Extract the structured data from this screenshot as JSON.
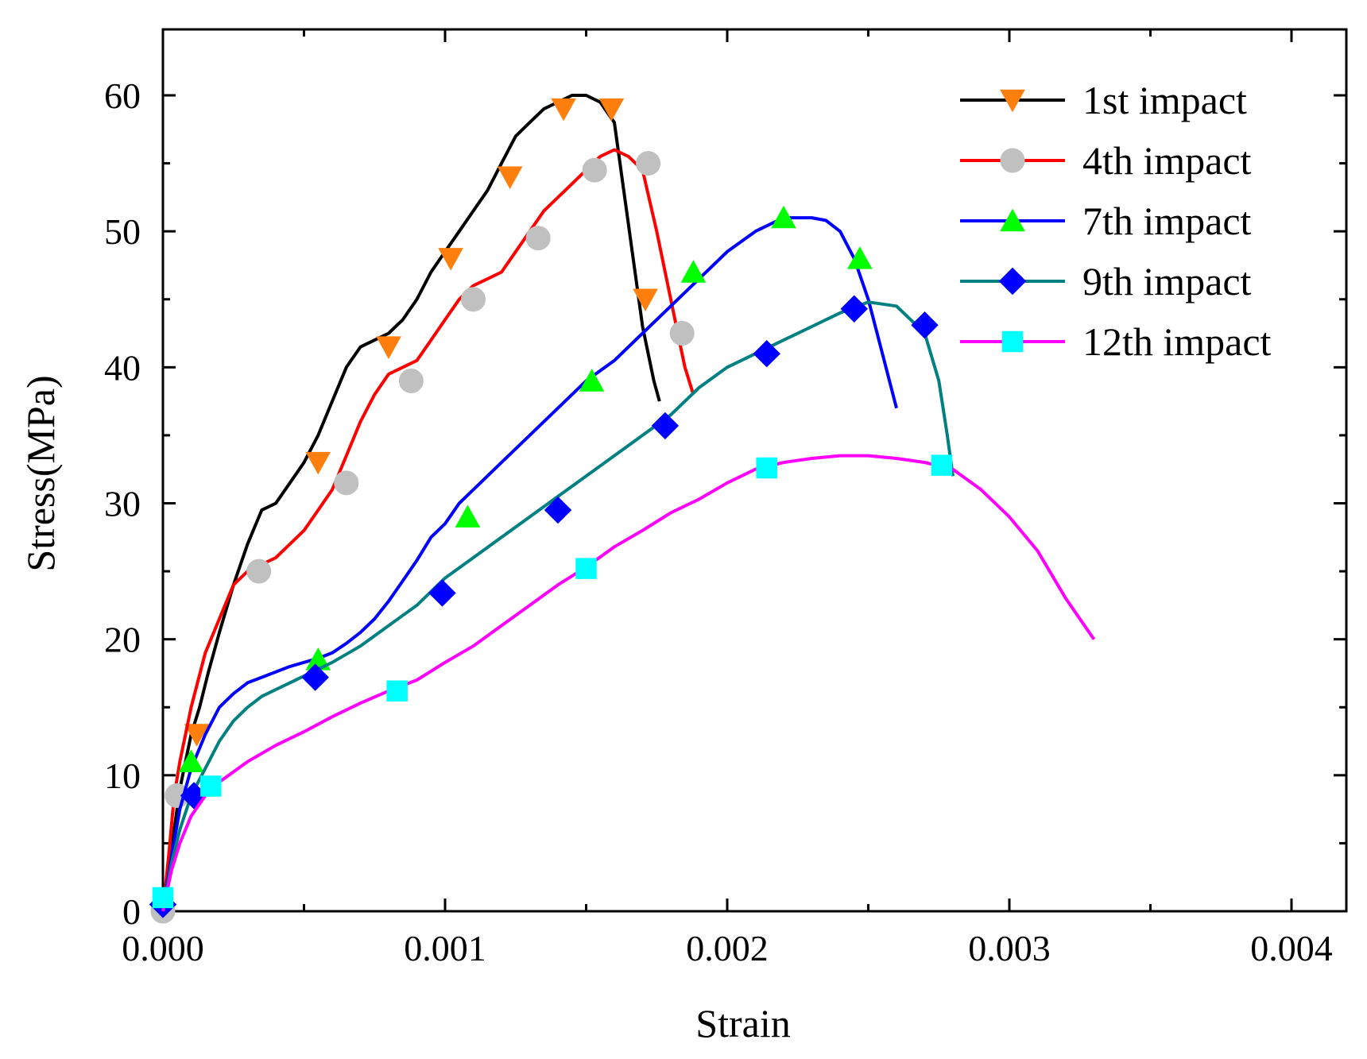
{
  "chart_data": {
    "type": "line",
    "title": "",
    "xlabel": "Strain",
    "ylabel": "Stress(MPa)",
    "xlim": [
      0,
      0.0042
    ],
    "ylim": [
      0,
      65
    ],
    "x_ticks": [
      "0.000",
      "0.001",
      "0.002",
      "0.003",
      "0.004"
    ],
    "y_ticks": [
      "0",
      "10",
      "20",
      "30",
      "40",
      "50",
      "60"
    ],
    "grid": false,
    "legend_position": "top-right",
    "series": [
      {
        "name": "1st impact",
        "color": "#000000",
        "marker": "triangle-down",
        "marker_color": "#ff7f0e",
        "x": [
          0,
          2e-05,
          4e-05,
          6e-05,
          8e-05,
          0.0001,
          0.00013,
          0.00016,
          0.0002,
          0.00025,
          0.0003,
          0.00035,
          0.0004,
          0.00045,
          0.0005,
          0.00055,
          0.0006,
          0.00065,
          0.0007,
          0.00075,
          0.0008,
          0.00085,
          0.0009,
          0.00095,
          0.001,
          0.00105,
          0.0011,
          0.00115,
          0.0012,
          0.00125,
          0.0013,
          0.00135,
          0.0014,
          0.00145,
          0.0015,
          0.00155,
          0.0016,
          0.00164,
          0.00168,
          0.0017,
          0.00172,
          0.00174,
          0.00176
        ],
        "y": [
          0,
          3,
          6,
          9,
          11,
          13,
          15,
          17.5,
          20.5,
          24,
          27,
          29.5,
          30,
          31.5,
          33,
          35,
          37.5,
          40,
          41.5,
          42,
          42.5,
          43.5,
          45,
          47,
          48.5,
          50,
          51.5,
          53,
          55,
          57,
          58,
          59,
          59.5,
          60,
          60,
          59.5,
          58,
          52,
          46,
          43,
          41,
          39,
          37.5
        ],
        "marker_x": [
          0.00012,
          0.00055,
          0.0008,
          0.00102,
          0.00123,
          0.00142,
          0.00159,
          0.00171
        ],
        "marker_y": [
          13,
          33,
          41.5,
          48,
          54,
          59,
          59,
          45
        ]
      },
      {
        "name": "4th impact",
        "color": "#ff0000",
        "marker": "circle",
        "marker_color": "#c0c0c0",
        "x": [
          0,
          2e-05,
          4e-05,
          6e-05,
          0.0001,
          0.00015,
          0.0002,
          0.00025,
          0.0003,
          0.00035,
          0.0004,
          0.00045,
          0.0005,
          0.00055,
          0.0006,
          0.00065,
          0.0007,
          0.00075,
          0.0008,
          0.00085,
          0.0009,
          0.00095,
          0.001,
          0.00105,
          0.0011,
          0.00115,
          0.0012,
          0.00125,
          0.0013,
          0.00135,
          0.0014,
          0.00145,
          0.0015,
          0.00155,
          0.0016,
          0.00165,
          0.0017,
          0.00175,
          0.00178,
          0.0018,
          0.00183,
          0.00185,
          0.00188
        ],
        "y": [
          0,
          4,
          8.5,
          11,
          15,
          19,
          21.5,
          24,
          25,
          25.5,
          26,
          27,
          28,
          29.5,
          31,
          33.5,
          36,
          38,
          39.5,
          40,
          40.5,
          42,
          43.5,
          45,
          46,
          46.5,
          47,
          48.5,
          50,
          51.5,
          52.5,
          53.5,
          54.5,
          55.5,
          56,
          55.5,
          54.5,
          50,
          47,
          45,
          42,
          40,
          38
        ],
        "marker_x": [
          5e-05,
          0.00034,
          0.00065,
          0.00088,
          0.0011,
          0.00133,
          0.00153,
          0.00172,
          0.00184,
          0.0
        ],
        "marker_y": [
          8.5,
          25,
          31.5,
          39,
          45,
          49.5,
          54.5,
          55,
          42.5,
          0
        ]
      },
      {
        "name": "7th impact",
        "color": "#0000ff",
        "marker": "triangle-up",
        "marker_color": "#00ff00",
        "x": [
          0,
          3e-05,
          6e-05,
          0.0001,
          0.00015,
          0.0002,
          0.00025,
          0.0003,
          0.00035,
          0.0004,
          0.00045,
          0.0005,
          0.00055,
          0.0006,
          0.00065,
          0.0007,
          0.00075,
          0.0008,
          0.00085,
          0.0009,
          0.00095,
          0.001,
          0.00105,
          0.0011,
          0.0012,
          0.0013,
          0.0014,
          0.0015,
          0.0016,
          0.0017,
          0.0018,
          0.0019,
          0.002,
          0.0021,
          0.0022,
          0.0023,
          0.00235,
          0.0024,
          0.00245,
          0.0025,
          0.00255,
          0.0026
        ],
        "y": [
          0,
          4,
          7.5,
          10.5,
          13,
          15,
          16,
          16.8,
          17.2,
          17.6,
          18,
          18.3,
          18.6,
          19,
          19.7,
          20.5,
          21.5,
          22.8,
          24.3,
          25.8,
          27.5,
          28.5,
          30,
          31,
          33,
          35,
          37,
          39,
          40.5,
          42.5,
          44.5,
          46.5,
          48.5,
          50,
          51,
          51,
          50.8,
          50,
          48,
          45,
          41,
          37
        ],
        "marker_x": [
          0.0001,
          0.00055,
          0.00108,
          0.00152,
          0.00188,
          0.0022,
          0.00247
        ],
        "marker_y": [
          11,
          18.5,
          29,
          39,
          47,
          51,
          48
        ]
      },
      {
        "name": "9th impact",
        "color": "#008080",
        "marker": "diamond",
        "marker_color": "#0000ff",
        "x": [
          0,
          3e-05,
          6e-05,
          0.0001,
          0.00015,
          0.0002,
          0.00025,
          0.0003,
          0.00035,
          0.0004,
          0.00045,
          0.0005,
          0.00055,
          0.0006,
          0.0007,
          0.0008,
          0.0009,
          0.001,
          0.0011,
          0.0012,
          0.0013,
          0.0014,
          0.0015,
          0.0016,
          0.0017,
          0.0018,
          0.0019,
          0.002,
          0.0021,
          0.0022,
          0.0023,
          0.0024,
          0.0025,
          0.0026,
          0.0027,
          0.00275,
          0.00278,
          0.0028
        ],
        "y": [
          0,
          3.5,
          6,
          8.5,
          10.5,
          12.5,
          14,
          15,
          15.8,
          16.3,
          16.8,
          17.3,
          17.8,
          18.3,
          19.5,
          21,
          22.5,
          24.5,
          26,
          27.5,
          29,
          30.5,
          32,
          33.5,
          35,
          36.5,
          38.5,
          40,
          41,
          42,
          43,
          44,
          44.8,
          44.5,
          42.5,
          39,
          35,
          32
        ],
        "marker_x": [
          0.0,
          0.00011,
          0.00054,
          0.00099,
          0.0014,
          0.00178,
          0.00214,
          0.00245,
          0.0027
        ],
        "marker_y": [
          0.5,
          8.5,
          17.2,
          23.4,
          29.5,
          35.7,
          41,
          44.3,
          43.1
        ]
      },
      {
        "name": "12th impact",
        "color": "#ff00ff",
        "marker": "square",
        "marker_color": "#00ffff",
        "x": [
          0,
          3e-05,
          6e-05,
          0.0001,
          0.00015,
          0.0002,
          0.0003,
          0.0004,
          0.0005,
          0.0006,
          0.0007,
          0.0008,
          0.0009,
          0.001,
          0.0011,
          0.0012,
          0.0013,
          0.0014,
          0.0015,
          0.0016,
          0.0017,
          0.0018,
          0.0019,
          0.002,
          0.0021,
          0.0022,
          0.0023,
          0.0024,
          0.0025,
          0.0026,
          0.0027,
          0.0028,
          0.0029,
          0.003,
          0.0031,
          0.0032,
          0.0033
        ],
        "y": [
          0,
          3,
          5,
          7,
          8.5,
          9.5,
          11,
          12.2,
          13.2,
          14.3,
          15.3,
          16.2,
          17,
          18.3,
          19.5,
          21,
          22.5,
          24,
          25.3,
          26.8,
          28,
          29.3,
          30.3,
          31.5,
          32.5,
          33,
          33.3,
          33.5,
          33.5,
          33.3,
          33,
          32.5,
          31,
          29,
          26.5,
          23,
          20
        ],
        "marker_x": [
          0.0,
          0.00017,
          0.00083,
          0.0015,
          0.00214,
          0.00276
        ],
        "marker_y": [
          1,
          9.2,
          16.2,
          25.2,
          32.6,
          32.8
        ]
      }
    ]
  }
}
